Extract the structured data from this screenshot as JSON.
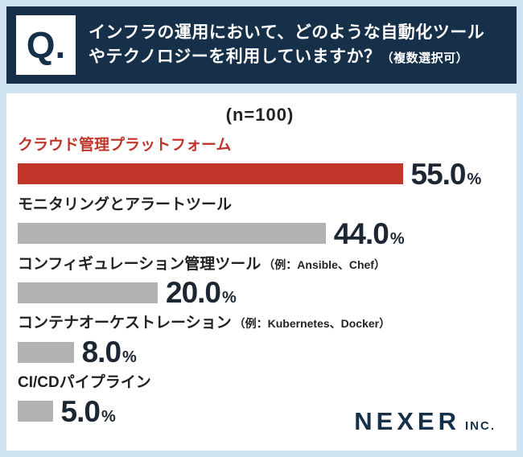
{
  "header": {
    "q": "Q.",
    "line1": "インフラの運用において、どのような自動化ツール",
    "line2": "やテクノロジーを利用していますか？",
    "note": "（複数選択可）"
  },
  "sample_label": "(n=100)",
  "chart_data": {
    "type": "bar",
    "orientation": "horizontal",
    "title": "インフラの運用において、どのような自動化ツールやテクノロジーを利用していますか？（複数選択可）",
    "sample_size": 100,
    "categories": [
      "クラウド管理プラットフォーム",
      "モニタリングとアラートツール",
      "コンフィギュレーション管理ツール（例：Ansible、Chef）",
      "コンテナオーケストレーション（例：Kubernetes、Docker）",
      "CI/CDパイプライン"
    ],
    "values": [
      55.0,
      44.0,
      20.0,
      8.0,
      5.0
    ],
    "unit": "%",
    "xlim": [
      0,
      60
    ],
    "highlight_index": 0,
    "legend": false,
    "grid": false,
    "colors": {
      "highlight": "#c1352b",
      "bar": "#b2b2b2",
      "header_bg": "#17304a",
      "page_bg": "#cfe3f1",
      "value_text": "#1c2733"
    }
  },
  "bars": [
    {
      "label": "クラウド管理プラットフォーム",
      "note": "",
      "value": "55.0"
    },
    {
      "label": "モニタリングとアラートツール",
      "note": "",
      "value": "44.0"
    },
    {
      "label": "コンフィギュレーション管理ツール",
      "note": "（例：Ansible、Chef）",
      "value": "20.0"
    },
    {
      "label": "コンテナオーケストレーション",
      "note": "（例：Kubernetes、Docker）",
      "value": "8.0"
    },
    {
      "label": "CI/CDパイプライン",
      "note": "",
      "value": "5.0"
    }
  ],
  "footer": {
    "brand": "NEXER",
    "suffix": "INC."
  }
}
